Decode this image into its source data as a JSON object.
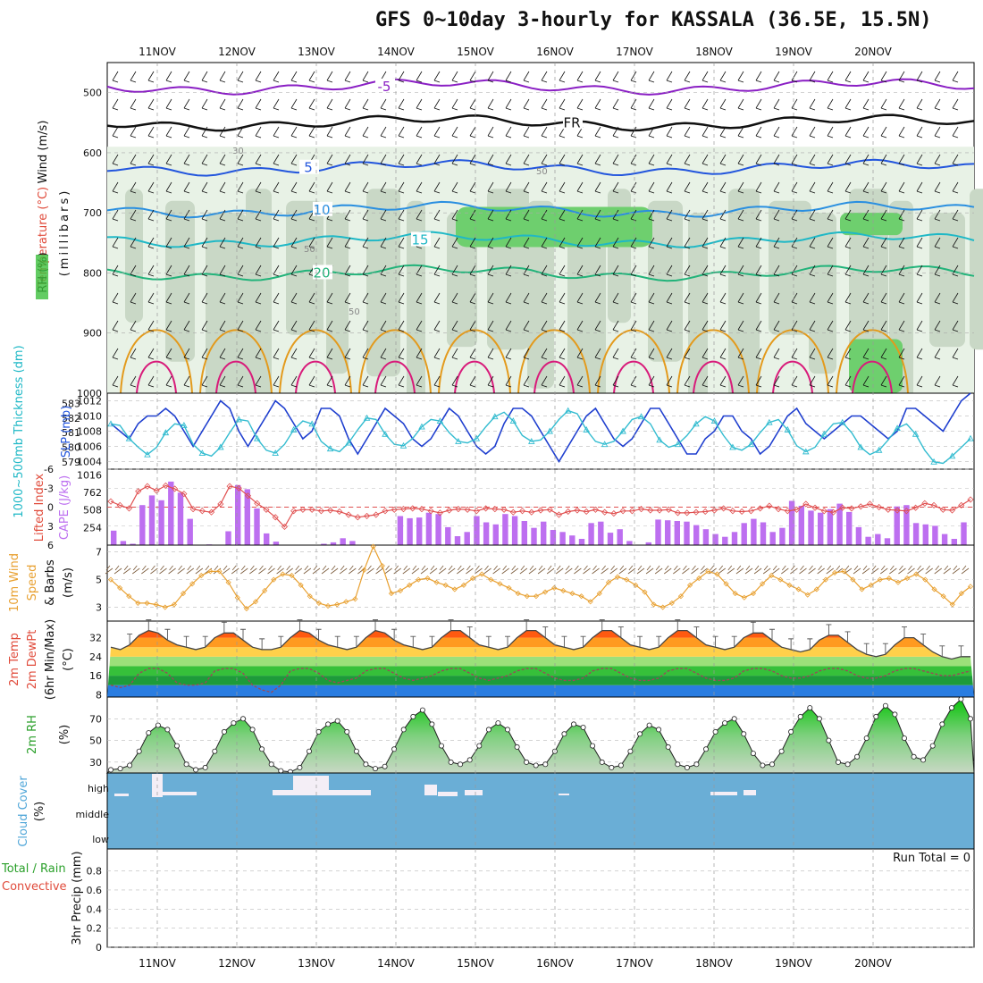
{
  "page": {
    "title": "GFS 0~10day 3-hourly for KASSALA (36.5E, 15.5N)",
    "run_total": "Run Total = 0"
  },
  "colors": {
    "purple_isotherm": "#8a1fc4",
    "freezing_line": "#111111",
    "blue_isotherm": "#2255dd",
    "light_blue_isotherm": "#2a8fe0",
    "cyan_isotherm": "#1fb8c6",
    "green_isotherm": "#22b37a",
    "orange_isotherm": "#e39a1c",
    "pink_isotherm": "#d81b7a",
    "slp_line": "#1f3fcf",
    "thickness_line": "#33bcd0",
    "cape_bar": "#bd6ff0",
    "lifted_index": "#e05050",
    "wind_speed": "#e8a030",
    "cloud_bg": "#6aaed6",
    "rh_fill": "#3cbf3c"
  },
  "chart_data": [
    {
      "panel": "upper-air",
      "type": "contour",
      "ylabel": "(millibars)",
      "legend": [
        "RH (%)",
        "Temperature (°C)",
        "Wind (m/s)"
      ],
      "y_ticks": [
        "500",
        "600",
        "700",
        "800",
        "900",
        "1000"
      ],
      "ylim": [
        450,
        1000
      ],
      "isotherms": [
        {
          "label": "-5",
          "level_mb": 490
        },
        {
          "label": "FR",
          "level_mb": 550
        },
        {
          "label": "5",
          "level_mb": 625
        },
        {
          "label": "10",
          "level_mb": 695
        },
        {
          "label": "15",
          "level_mb": 745
        },
        {
          "label": "20",
          "level_mb": 800
        }
      ],
      "rh_labels": [
        "30",
        "50"
      ]
    },
    {
      "panel": "pressure",
      "type": "line",
      "ylabel_left": "1000~500mb Thickness (dm)",
      "ylabel_right": "SLP (mb)",
      "left_ticks": [
        "583",
        "582",
        "581",
        "580",
        "579"
      ],
      "right_ticks": [
        "1012",
        "1010",
        "1008",
        "1006",
        "1004"
      ],
      "slp_range": [
        1003,
        1013
      ],
      "slp": [
        1009,
        1008,
        1007,
        1009,
        1010,
        1010,
        1011,
        1010,
        1008,
        1006,
        1008,
        1010,
        1012,
        1011,
        1008,
        1006,
        1008,
        1010,
        1012,
        1011,
        1009,
        1007,
        1008,
        1011,
        1011,
        1010,
        1007,
        1005,
        1007,
        1009,
        1011,
        1010,
        1009,
        1007,
        1006,
        1007,
        1009,
        1011,
        1010,
        1008,
        1006,
        1005,
        1006,
        1009,
        1011,
        1011,
        1010,
        1008,
        1006,
        1004,
        1006,
        1008,
        1010,
        1011,
        1009,
        1007,
        1006,
        1007,
        1009,
        1011,
        1011,
        1009,
        1007,
        1005,
        1005,
        1007,
        1008,
        1010,
        1010,
        1008,
        1007,
        1005,
        1006,
        1008,
        1010,
        1011,
        1009,
        1008,
        1007,
        1008,
        1009,
        1010,
        1010,
        1009,
        1008,
        1007,
        1008,
        1011,
        1011,
        1010,
        1009,
        1008,
        1010,
        1012,
        1013
      ],
      "thickness": [
        581.6,
        581.5,
        580.6,
        580.0,
        579.5,
        580.0,
        581.0,
        581.6,
        581.5,
        580.2,
        579.6,
        579.4,
        580.0,
        581.0,
        581.9,
        581.8,
        580.6,
        579.8,
        579.6,
        580.2,
        581.2,
        581.8,
        581.6,
        580.4,
        579.9,
        579.7,
        580.3,
        581.2,
        582.0,
        581.9,
        580.9,
        580.2,
        580.1,
        580.6,
        581.4,
        581.9,
        581.8,
        581.0,
        580.4,
        580.3,
        580.6,
        581.4,
        582.1,
        582.4,
        581.8,
        580.8,
        580.4,
        580.5,
        581.1,
        581.9,
        582.5,
        582.3,
        581.2,
        580.4,
        580.2,
        580.4,
        581.1,
        581.9,
        582.1,
        581.6,
        580.5,
        580.0,
        580.2,
        580.8,
        581.6,
        582.1,
        581.8,
        580.8,
        580.0,
        579.8,
        580.2,
        581.0,
        581.7,
        581.9,
        581.2,
        580.1,
        579.7,
        580.0,
        580.9,
        581.6,
        581.7,
        581.0,
        580.0,
        579.5,
        579.8,
        580.5,
        581.3,
        581.6,
        580.9,
        579.8,
        579.0,
        578.9,
        579.4,
        580.0,
        580.6
      ]
    },
    {
      "panel": "instability",
      "type": "bar",
      "ylabel_left": "Lifted Index",
      "ylabel_right": "CAPE (J/kg)",
      "left_ticks": [
        "-6",
        "-3",
        "0",
        "3",
        "6"
      ],
      "right_ticks": [
        "1016",
        "762",
        "508",
        "254"
      ],
      "cape_range": [
        0,
        1016
      ],
      "cape": [
        210,
        60,
        20,
        580,
        720,
        650,
        920,
        760,
        380,
        0,
        10,
        0,
        200,
        870,
        810,
        530,
        170,
        50,
        0,
        0,
        0,
        0,
        20,
        40,
        100,
        60,
        0,
        0,
        0,
        0,
        420,
        390,
        400,
        470,
        450,
        260,
        130,
        190,
        420,
        330,
        300,
        450,
        420,
        350,
        250,
        340,
        220,
        190,
        140,
        90,
        320,
        340,
        180,
        230,
        60,
        0,
        40,
        370,
        360,
        350,
        340,
        290,
        230,
        160,
        120,
        190,
        320,
        380,
        330,
        190,
        250,
        640,
        570,
        500,
        470,
        520,
        600,
        480,
        260,
        120,
        160,
        100,
        560,
        580,
        320,
        300,
        280,
        160,
        90,
        330
      ],
      "lifted_index": [
        -0.9,
        -0.3,
        0.2,
        -2.5,
        -3.3,
        -2.6,
        -3.4,
        -2.9,
        -2.1,
        0.3,
        0.6,
        0.8,
        -0.5,
        -3.3,
        -3.0,
        -1.8,
        -0.6,
        0.4,
        1.6,
        3.1,
        0.6,
        0.4,
        0.4,
        0.6,
        0.5,
        0.7,
        1.2,
        1.6,
        1.4,
        1.2,
        0.6,
        0.4,
        0.3,
        0.2,
        0.3,
        0.6,
        0.9,
        0.5,
        0.3,
        0.4,
        0.6,
        0.2,
        0.3,
        0.4,
        0.8,
        0.6,
        0.8,
        0.5,
        0.4,
        1.2,
        0.7,
        0.5,
        0.7,
        0.4,
        0.8,
        1.0,
        0.6,
        0.6,
        0.3,
        0.5,
        0.5,
        0.4,
        0.9,
        0.9,
        0.8,
        0.7,
        0.5,
        0.2,
        0.6,
        0.7,
        0.6,
        0.2,
        -0.2,
        0.3,
        0.6,
        0.4,
        -0.5,
        0.1,
        0.6,
        0.8,
        0.1,
        0.2,
        -0.1,
        -0.5,
        0.0,
        0.4,
        0.5,
        0.6,
        0.1,
        -0.6,
        -0.3,
        0.4,
        0.5,
        -0.3,
        -1.2
      ]
    },
    {
      "panel": "wind10m",
      "type": "line",
      "ylabel": "10m Wind Speed & Barbs (m/s)",
      "ticks": [
        "7",
        "5",
        "3"
      ],
      "ylim": [
        2,
        7.5
      ],
      "speed": [
        5.0,
        4.4,
        3.8,
        3.3,
        3.3,
        3.2,
        3.0,
        3.2,
        4.0,
        4.7,
        5.3,
        5.6,
        5.6,
        4.8,
        3.7,
        2.9,
        3.4,
        4.2,
        5.0,
        5.4,
        5.3,
        4.6,
        3.8,
        3.3,
        3.1,
        3.2,
        3.4,
        3.6,
        5.7,
        7.4,
        6.0,
        4.0,
        4.2,
        4.6,
        5.0,
        5.1,
        4.8,
        4.6,
        4.3,
        4.6,
        5.1,
        5.4,
        5.0,
        4.7,
        4.4,
        4.0,
        3.8,
        3.8,
        4.1,
        4.4,
        4.2,
        4.0,
        3.8,
        3.4,
        4.0,
        4.8,
        5.2,
        5.0,
        4.6,
        4.1,
        3.2,
        3.0,
        3.3,
        3.8,
        4.6,
        5.1,
        5.6,
        5.4,
        4.7,
        4.0,
        3.7,
        4.0,
        4.7,
        5.3,
        5.0,
        4.6,
        4.3,
        3.9,
        4.3,
        5.0,
        5.5,
        5.6,
        5.0,
        4.3,
        4.6,
        5.0,
        5.1,
        4.8,
        5.1,
        5.4,
        5.0,
        4.3,
        3.8,
        3.2,
        4.0,
        4.5
      ]
    },
    {
      "panel": "temperature",
      "type": "area",
      "ylabel": "2m Temp 2m DewPt (6hr Min/Max) (°C)",
      "ticks": [
        "32",
        "24",
        "16",
        "8"
      ],
      "ylim": [
        7,
        39
      ],
      "temp": [
        28,
        27,
        29,
        33,
        35,
        34,
        31,
        29,
        28,
        27,
        28,
        32,
        34,
        34,
        31,
        28,
        27,
        27,
        28,
        32,
        35,
        34,
        31,
        29,
        28,
        27,
        28,
        32,
        35,
        34,
        31,
        29,
        28,
        27,
        28,
        32,
        35,
        35,
        32,
        29,
        28,
        27,
        28,
        32,
        35,
        35,
        32,
        29,
        28,
        27,
        28,
        32,
        35,
        35,
        32,
        29,
        28,
        27,
        28,
        32,
        35,
        35,
        32,
        29,
        28,
        27,
        28,
        32,
        34,
        34,
        31,
        28,
        27,
        26,
        27,
        31,
        33,
        33,
        30,
        27,
        25,
        24,
        25,
        29,
        32,
        32,
        29,
        26,
        24,
        23,
        24,
        24
      ],
      "dewpoint": [
        12,
        11,
        12,
        17,
        19,
        19,
        17,
        13,
        12,
        12,
        13,
        18,
        19,
        19,
        17,
        12,
        10,
        9,
        12,
        18,
        19,
        19,
        17,
        14,
        13,
        14,
        15,
        18,
        19,
        19,
        17,
        15,
        14,
        15,
        16,
        18,
        19,
        19,
        17,
        15,
        14,
        15,
        16,
        18,
        19,
        19,
        17,
        15,
        14,
        14,
        15,
        18,
        19,
        19,
        17,
        15,
        14,
        14,
        15,
        18,
        19,
        19,
        17,
        15,
        14,
        14,
        15,
        18,
        19,
        19,
        18,
        16,
        15,
        15,
        16,
        18,
        19,
        19,
        18,
        16,
        15,
        15,
        16,
        18,
        19,
        19,
        18,
        17,
        16,
        16,
        17,
        18
      ]
    },
    {
      "panel": "humidity",
      "type": "area",
      "ylabel": "2m RH (%)",
      "ticks": [
        "70",
        "50",
        "30"
      ],
      "ylim": [
        20,
        90
      ],
      "rh": [
        23,
        24,
        27,
        40,
        57,
        64,
        60,
        45,
        28,
        23,
        25,
        40,
        58,
        66,
        70,
        60,
        42,
        28,
        22,
        21,
        25,
        40,
        58,
        65,
        68,
        58,
        40,
        28,
        24,
        26,
        42,
        60,
        72,
        78,
        65,
        45,
        30,
        28,
        32,
        45,
        60,
        66,
        60,
        44,
        30,
        27,
        28,
        40,
        56,
        65,
        62,
        45,
        30,
        25,
        27,
        40,
        56,
        64,
        60,
        44,
        28,
        25,
        28,
        42,
        58,
        66,
        70,
        56,
        38,
        27,
        28,
        40,
        58,
        72,
        80,
        70,
        50,
        30,
        28,
        35,
        52,
        72,
        82,
        74,
        52,
        35,
        32,
        45,
        65,
        80,
        88,
        70
      ]
    },
    {
      "panel": "cloud",
      "type": "bar",
      "ylabel": "Cloud Cover (%)",
      "levels": [
        "high",
        "middle",
        "low"
      ]
    },
    {
      "panel": "precip",
      "type": "bar",
      "ylabel": "3hr Precip (mm)",
      "legend": [
        "Total / Rain",
        "Convective"
      ],
      "ticks": [
        "0.8",
        "0.6",
        "0.4",
        "0.2",
        "0"
      ],
      "ylim": [
        0,
        1
      ],
      "values": []
    },
    {
      "panel": "time-axis",
      "dates": [
        "11NOV",
        "12NOV",
        "13NOV",
        "14NOV",
        "15NOV",
        "16NOV",
        "17NOV",
        "18NOV",
        "19NOV",
        "20NOV"
      ]
    }
  ]
}
